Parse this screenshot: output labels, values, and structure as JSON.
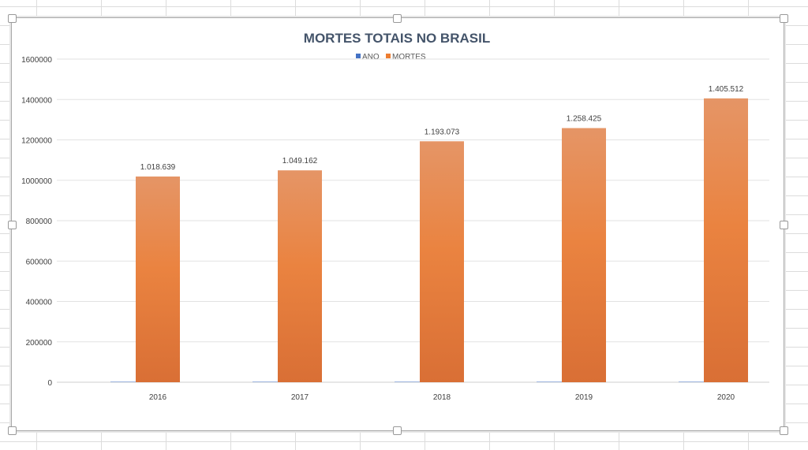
{
  "chart_data": {
    "type": "bar",
    "title": "MORTES TOTAIS NO BRASIL",
    "categories": [
      "2016",
      "2017",
      "2018",
      "2019",
      "2020"
    ],
    "series": [
      {
        "name": "ANO",
        "values": [
          2016,
          2017,
          2018,
          2019,
          2020
        ],
        "color": "#4472C4"
      },
      {
        "name": "MORTES",
        "values": [
          1018639,
          1049162,
          1193073,
          1258425,
          1405512
        ],
        "color": "#ED7D31"
      }
    ],
    "data_labels": [
      "1.018.639",
      "1.049.162",
      "1.193.073",
      "1.258.425",
      "1.405.512"
    ],
    "yticks": [
      "0",
      "200000",
      "400000",
      "600000",
      "800000",
      "1000000",
      "1200000",
      "1400000",
      "1600000"
    ],
    "ylim": [
      0,
      1600000
    ],
    "grid": true,
    "legend": "top"
  }
}
